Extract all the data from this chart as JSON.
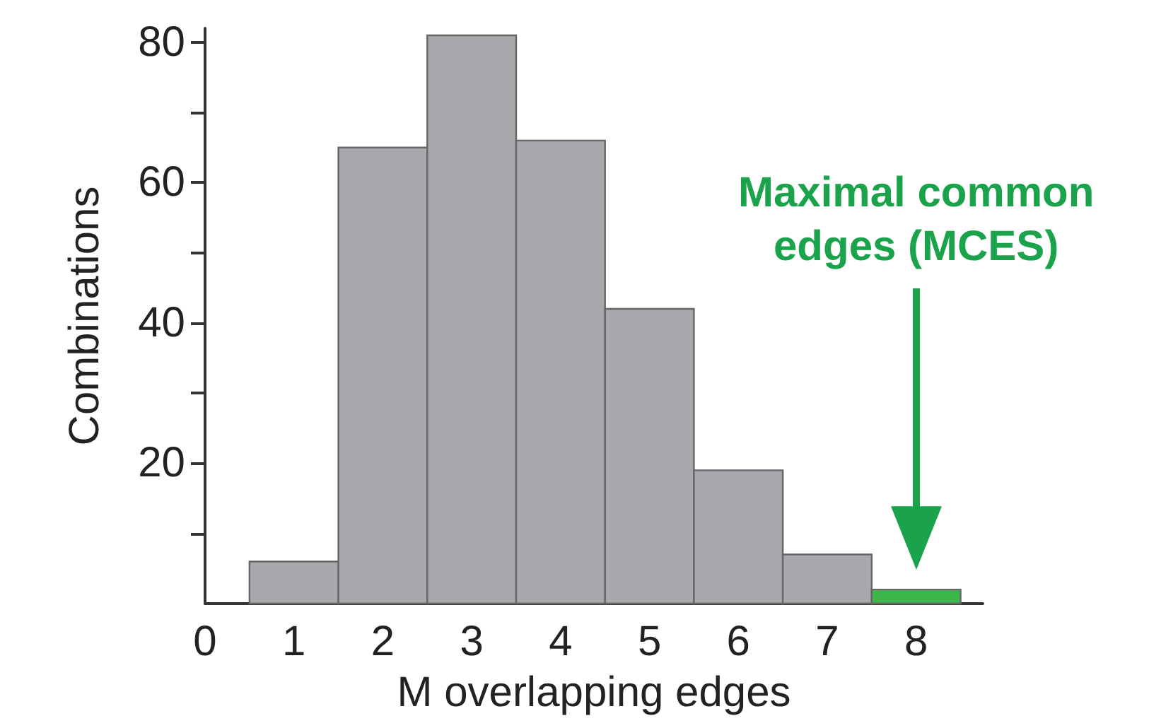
{
  "chart_data": {
    "type": "histogram",
    "xlabel": "M overlapping edges",
    "ylabel": "Combinations",
    "bins": [
      0.5,
      1.5,
      2.5,
      3.5,
      4.5,
      5.5,
      6.5,
      7.5,
      8.5
    ],
    "values": [
      6,
      65,
      81,
      66,
      42,
      19,
      7,
      2
    ],
    "colors": [
      "#a7a8ac",
      "#a7a8ac",
      "#a7a8ac",
      "#a7a8ac",
      "#a7a8ac",
      "#a7a8ac",
      "#a7a8ac",
      "#3cb54a"
    ],
    "xlim": [
      0,
      8.75
    ],
    "xticks": [
      0,
      1,
      2,
      3,
      4,
      5,
      6,
      7,
      8
    ],
    "ylim": [
      0,
      82
    ],
    "yticks": [
      {
        "value": 10,
        "label": null
      },
      20,
      {
        "value": 30,
        "label": null
      },
      40,
      {
        "value": 50,
        "label": null
      },
      60,
      {
        "value": 70,
        "label": null
      },
      80
    ],
    "annotations": [
      "Maximal common edges (MCES)"
    ]
  }
}
